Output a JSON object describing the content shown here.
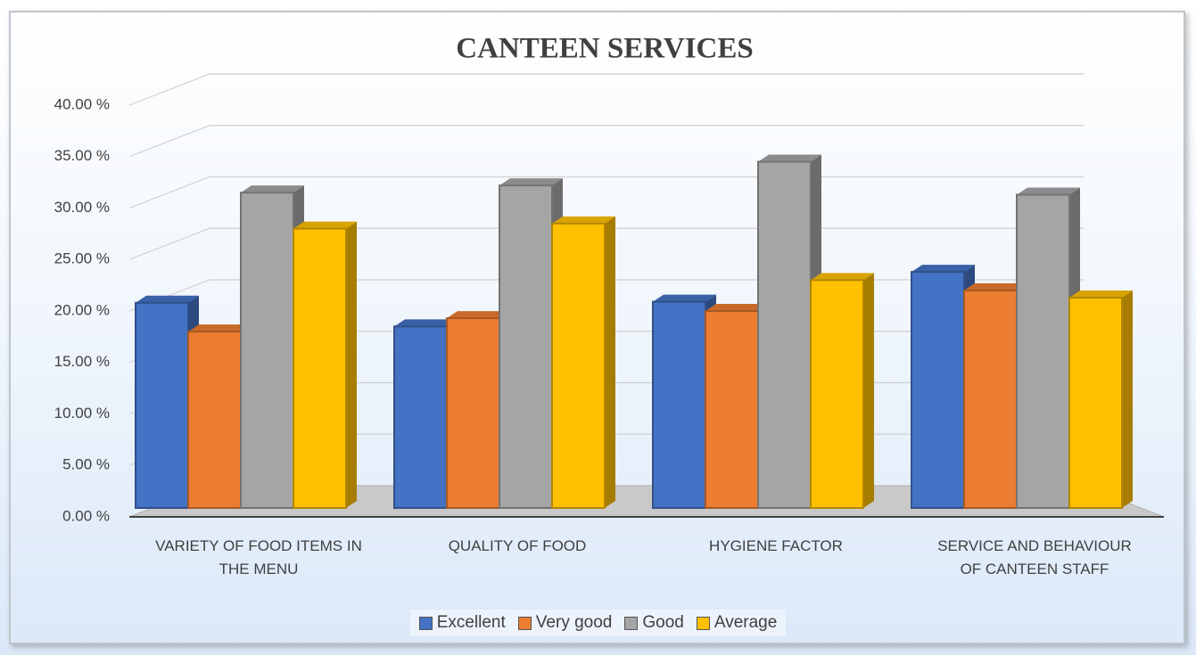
{
  "chart_data": {
    "type": "bar",
    "title": "CANTEEN SERVICES",
    "categories": [
      "VARIETY OF FOOD ITEMS IN THE MENU",
      "QUALITY OF FOOD",
      "HYGIENE FACTOR",
      "SERVICE AND BEHAVIOUR OF CANTEEN STAFF"
    ],
    "series": [
      {
        "name": "Excellent",
        "color": "#4472c4",
        "values": [
          20.8,
          18.5,
          20.9,
          23.8
        ]
      },
      {
        "name": "Very good",
        "color": "#ed7d31",
        "values": [
          18.0,
          19.3,
          20.0,
          22.0
        ]
      },
      {
        "name": "Good",
        "color": "#a5a5a5",
        "values": [
          31.5,
          32.2,
          34.5,
          31.3
        ]
      },
      {
        "name": "Average",
        "color": "#ffc000",
        "values": [
          28.0,
          28.5,
          23.0,
          21.3
        ]
      }
    ],
    "ylim": [
      0,
      40
    ],
    "yticks": [
      {
        "value": 0,
        "label": "0.00 %"
      },
      {
        "value": 5,
        "label": "5.00 %"
      },
      {
        "value": 10,
        "label": "10.00 %"
      },
      {
        "value": 15,
        "label": "15.00 %"
      },
      {
        "value": 20,
        "label": "20.00 %"
      },
      {
        "value": 25,
        "label": "25.00 %"
      },
      {
        "value": 30,
        "label": "30.00 %"
      },
      {
        "value": 35,
        "label": "35.00 %"
      },
      {
        "value": 40,
        "label": "40.00 %"
      }
    ],
    "grid": true,
    "legend": "bottom"
  }
}
